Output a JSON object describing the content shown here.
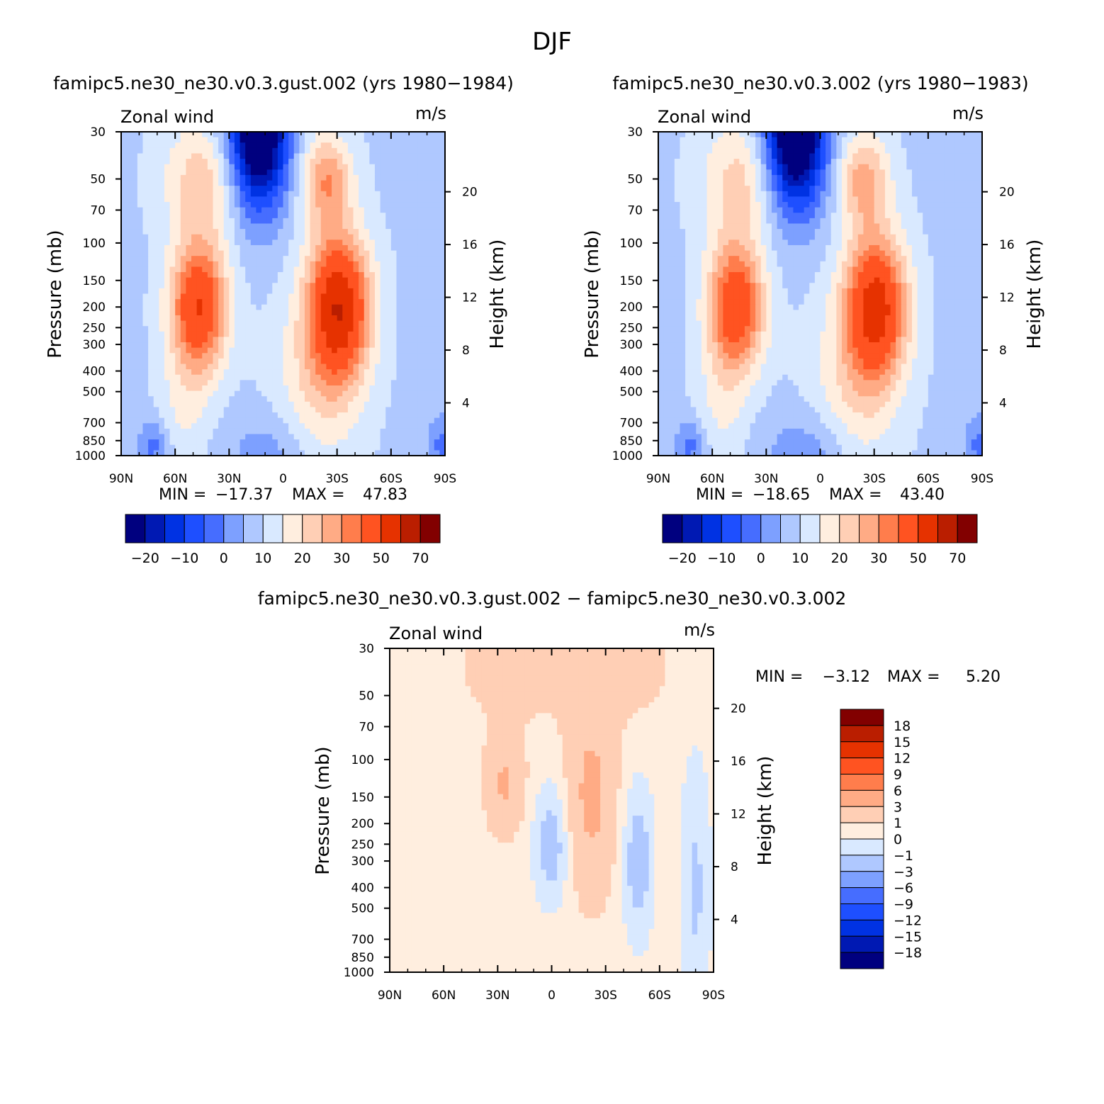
{
  "figure": {
    "title": "DJF"
  },
  "colors": {
    "full_field": [
      "#00007f",
      "#0019b3",
      "#0032e3",
      "#1e4fff",
      "#466dff",
      "#7da0ff",
      "#afc8ff",
      "#d9e9ff",
      "#ffeedf",
      "#ffcfb5",
      "#ffab85",
      "#ff7d4c",
      "#ff5321",
      "#e63200",
      "#ba1e00",
      "#820000"
    ],
    "diff_field": [
      "#00007f",
      "#0019b3",
      "#0032e3",
      "#1e4fff",
      "#466dff",
      "#7da0ff",
      "#afc8ff",
      "#d9e9ff",
      "#ffeedf",
      "#ffcfb5",
      "#ffab85",
      "#ff7d4c",
      "#ff5321",
      "#e63200",
      "#ba1e00",
      "#820000"
    ]
  },
  "chart_data": [
    {
      "type": "heatmap",
      "title": "famipc5.ne30_ne30.v0.3.gust.002 (yrs 1980−1984)",
      "left_label": "Zonal wind",
      "right_label": "m/s",
      "xlabel": "",
      "ylabel": "Pressure (mb)",
      "y2label": "Height (km)",
      "x_ticks": [
        "90N",
        "60N",
        "30N",
        "0",
        "30S",
        "60S",
        "90S"
      ],
      "y_ticks": [
        30,
        50,
        70,
        100,
        150,
        200,
        250,
        300,
        400,
        500,
        700,
        850,
        1000
      ],
      "y2_ticks": [
        20,
        16,
        12,
        8,
        4
      ],
      "ylim": [
        1000,
        30
      ],
      "stats": {
        "min_label": "MIN =",
        "min": "−17.37",
        "max_label": "MAX =",
        "max": "47.83"
      },
      "levels": [
        "−20",
        "−10",
        "0",
        "10",
        "20",
        "30",
        "50",
        "70"
      ],
      "blobs": [
        {
          "lat": -31,
          "p": 200,
          "sx": 12,
          "sy": 0.55,
          "value": 47
        },
        {
          "lat": -24,
          "p": 50,
          "sx": 10,
          "sy": 0.35,
          "value": 24
        },
        {
          "lat": -18,
          "p": 500,
          "sx": 17,
          "sy": 0.75,
          "value": 14
        },
        {
          "lat": 47,
          "p": 200,
          "sx": 11,
          "sy": 0.5,
          "value": 40
        },
        {
          "lat": 44,
          "p": 50,
          "sx": 16,
          "sy": 0.45,
          "value": 18
        },
        {
          "lat": 55,
          "p": 600,
          "sx": 10,
          "sy": 0.45,
          "value": 10
        },
        {
          "lat": 14,
          "p": 30,
          "sx": 12,
          "sy": 0.6,
          "value": -39
        },
        {
          "lat": 5,
          "p": 1000,
          "sx": 18,
          "sy": 0.35,
          "value": -4
        },
        {
          "lat": 72,
          "p": 900,
          "sx": 6,
          "sy": 0.2,
          "value": -7
        },
        {
          "lat": -88,
          "p": 900,
          "sx": 6,
          "sy": 0.25,
          "value": -6
        }
      ],
      "background": 4
    },
    {
      "type": "heatmap",
      "title": "famipc5.ne30_ne30.v0.3.002 (yrs 1980−1983)",
      "left_label": "Zonal wind",
      "right_label": "m/s",
      "xlabel": "",
      "ylabel": "Pressure (mb)",
      "y2label": "Height (km)",
      "x_ticks": [
        "90N",
        "60N",
        "30N",
        "0",
        "30S",
        "60S",
        "90S"
      ],
      "y_ticks": [
        30,
        50,
        70,
        100,
        150,
        200,
        250,
        300,
        400,
        500,
        700,
        850,
        1000
      ],
      "y2_ticks": [
        20,
        16,
        12,
        8,
        4
      ],
      "ylim": [
        1000,
        30
      ],
      "stats": {
        "min_label": "MIN =",
        "min": "−18.65",
        "max_label": "MAX =",
        "max": "43.40"
      },
      "levels": [
        "−20",
        "−10",
        "0",
        "10",
        "20",
        "30",
        "50",
        "70"
      ],
      "blobs": [
        {
          "lat": -31,
          "p": 200,
          "sx": 12,
          "sy": 0.55,
          "value": 43
        },
        {
          "lat": -24,
          "p": 50,
          "sx": 10,
          "sy": 0.35,
          "value": 22
        },
        {
          "lat": -18,
          "p": 500,
          "sx": 17,
          "sy": 0.75,
          "value": 14
        },
        {
          "lat": 47,
          "p": 200,
          "sx": 11,
          "sy": 0.5,
          "value": 38
        },
        {
          "lat": 44,
          "p": 50,
          "sx": 16,
          "sy": 0.45,
          "value": 17
        },
        {
          "lat": 55,
          "p": 600,
          "sx": 10,
          "sy": 0.45,
          "value": 10
        },
        {
          "lat": 14,
          "p": 30,
          "sx": 12,
          "sy": 0.6,
          "value": -40
        },
        {
          "lat": 5,
          "p": 1000,
          "sx": 18,
          "sy": 0.35,
          "value": -5
        },
        {
          "lat": 72,
          "p": 900,
          "sx": 6,
          "sy": 0.2,
          "value": -7
        },
        {
          "lat": -88,
          "p": 900,
          "sx": 6,
          "sy": 0.25,
          "value": -6
        }
      ],
      "background": 4
    },
    {
      "type": "heatmap",
      "title": "famipc5.ne30_ne30.v0.3.gust.002 − famipc5.ne30_ne30.v0.3.002",
      "left_label": "Zonal wind",
      "right_label": "m/s",
      "xlabel": "",
      "ylabel": "Pressure (mb)",
      "y2label": "Height (km)",
      "x_ticks": [
        "90N",
        "60N",
        "30N",
        "0",
        "30S",
        "60S",
        "90S"
      ],
      "y_ticks": [
        30,
        50,
        70,
        100,
        150,
        200,
        250,
        300,
        400,
        500,
        700,
        850,
        1000
      ],
      "y2_ticks": [
        20,
        16,
        12,
        8,
        4
      ],
      "ylim": [
        1000,
        30
      ],
      "stats": {
        "min_label": "MIN =",
        "min": "−3.12",
        "max_label": "MAX =",
        "max": "5.20"
      },
      "levels": [
        "18",
        "15",
        "12",
        "9",
        "6",
        "3",
        "1",
        "0",
        "−1",
        "−3",
        "−6",
        "−9",
        "−12",
        "−15",
        "−18"
      ],
      "blobs": [
        {
          "lat": -22,
          "p": 150,
          "sx": 9,
          "sy": 0.7,
          "value": 3.6
        },
        {
          "lat": 26,
          "p": 130,
          "sx": 7,
          "sy": 0.35,
          "value": 3.3
        },
        {
          "lat": -40,
          "p": 35,
          "sx": 20,
          "sy": 0.5,
          "value": 1.5
        },
        {
          "lat": 20,
          "p": 35,
          "sx": 25,
          "sy": 0.5,
          "value": 1.5
        },
        {
          "lat": -48,
          "p": 300,
          "sx": 6,
          "sy": 0.6,
          "value": -1.8
        },
        {
          "lat": 0,
          "p": 250,
          "sx": 7,
          "sy": 0.45,
          "value": -1.8
        },
        {
          "lat": -80,
          "p": 400,
          "sx": 6,
          "sy": 1.0,
          "value": -1.2
        }
      ],
      "background": 0.5
    }
  ]
}
